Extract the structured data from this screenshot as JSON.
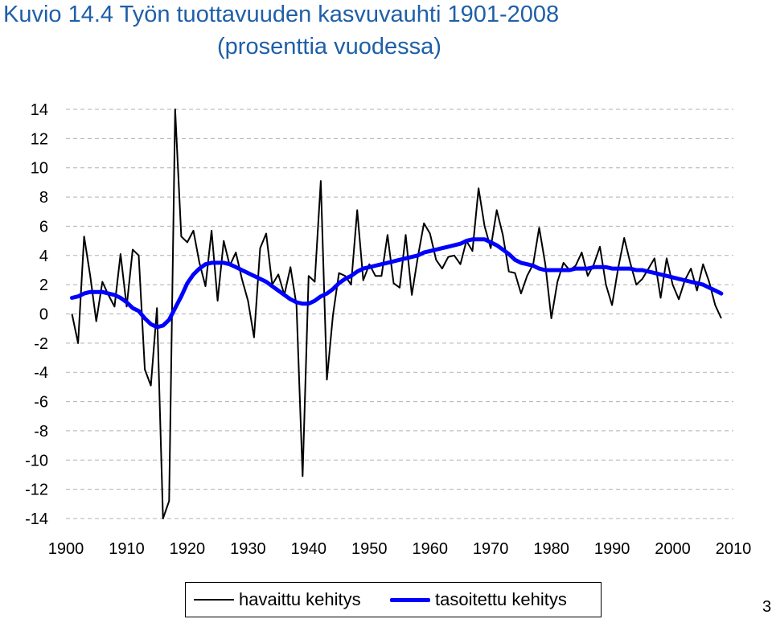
{
  "title_line1": "Kuvio 14.4 Työn tuottavuuden kasvuvauhti 1901-2008",
  "title_line2": "(prosenttia vuodessa)",
  "page_number": "3",
  "colors": {
    "title": "#1f5fa8",
    "observed": "#000000",
    "trend": "#0000ff",
    "grid": "#b0b0b0"
  },
  "chart_data": {
    "type": "line",
    "title": "Kuvio 14.4 Työn tuottavuuden kasvuvauhti 1901-2008 (prosenttia vuodessa)",
    "xlim": [
      1900,
      2010
    ],
    "ylim": [
      -14,
      14
    ],
    "x_ticks": [
      "1900",
      "1910",
      "1920",
      "1930",
      "1940",
      "1950",
      "1960",
      "1970",
      "1980",
      "1990",
      "2000",
      "2010"
    ],
    "y_ticks": [
      "14",
      "12",
      "10",
      "8",
      "6",
      "4",
      "2",
      "0",
      "-2",
      "-4",
      "-6",
      "-8",
      "-10",
      "-12",
      "-14"
    ],
    "grid": "horizontal dashed",
    "legend": "bottom",
    "series": [
      {
        "name": "havaittu kehitys",
        "style": "thin black line",
        "points": [
          [
            1901,
            0.0
          ],
          [
            1902,
            -2.0
          ],
          [
            1903,
            5.3
          ],
          [
            1904,
            2.6
          ],
          [
            1905,
            -0.5
          ],
          [
            1906,
            2.2
          ],
          [
            1907,
            1.3
          ],
          [
            1908,
            0.5
          ],
          [
            1909,
            4.1
          ],
          [
            1910,
            0.5
          ],
          [
            1911,
            4.4
          ],
          [
            1912,
            4.0
          ],
          [
            1913,
            -3.8
          ],
          [
            1914,
            -4.9
          ],
          [
            1915,
            0.4
          ],
          [
            1916,
            -14.0
          ],
          [
            1917,
            -12.8
          ],
          [
            1918,
            14.0
          ],
          [
            1919,
            5.3
          ],
          [
            1920,
            4.9
          ],
          [
            1921,
            5.7
          ],
          [
            1922,
            3.5
          ],
          [
            1923,
            1.9
          ],
          [
            1924,
            5.7
          ],
          [
            1925,
            0.9
          ],
          [
            1926,
            5.0
          ],
          [
            1927,
            3.3
          ],
          [
            1928,
            4.2
          ],
          [
            1929,
            2.4
          ],
          [
            1930,
            0.9
          ],
          [
            1931,
            -1.6
          ],
          [
            1932,
            4.5
          ],
          [
            1933,
            5.5
          ],
          [
            1934,
            2.0
          ],
          [
            1935,
            2.7
          ],
          [
            1936,
            1.3
          ],
          [
            1937,
            3.2
          ],
          [
            1938,
            0.6
          ],
          [
            1939,
            -11.1
          ],
          [
            1940,
            2.6
          ],
          [
            1941,
            2.2
          ],
          [
            1942,
            9.1
          ],
          [
            1943,
            -4.5
          ],
          [
            1944,
            -0.1
          ],
          [
            1945,
            2.8
          ],
          [
            1946,
            2.6
          ],
          [
            1947,
            2.0
          ],
          [
            1948,
            7.1
          ],
          [
            1949,
            2.3
          ],
          [
            1950,
            3.4
          ],
          [
            1951,
            2.6
          ],
          [
            1952,
            2.6
          ],
          [
            1953,
            5.4
          ],
          [
            1954,
            2.1
          ],
          [
            1955,
            1.8
          ],
          [
            1956,
            5.4
          ],
          [
            1957,
            1.3
          ],
          [
            1958,
            3.9
          ],
          [
            1959,
            6.2
          ],
          [
            1960,
            5.5
          ],
          [
            1961,
            3.7
          ],
          [
            1962,
            3.1
          ],
          [
            1963,
            3.9
          ],
          [
            1964,
            4.0
          ],
          [
            1965,
            3.4
          ],
          [
            1966,
            5.0
          ],
          [
            1967,
            4.3
          ],
          [
            1968,
            8.6
          ],
          [
            1969,
            6.0
          ],
          [
            1970,
            4.5
          ],
          [
            1971,
            7.1
          ],
          [
            1972,
            5.4
          ],
          [
            1973,
            2.9
          ],
          [
            1974,
            2.8
          ],
          [
            1975,
            1.4
          ],
          [
            1976,
            2.6
          ],
          [
            1977,
            3.4
          ],
          [
            1978,
            5.9
          ],
          [
            1979,
            3.4
          ],
          [
            1980,
            -0.3
          ],
          [
            1981,
            2.2
          ],
          [
            1982,
            3.5
          ],
          [
            1983,
            3.0
          ],
          [
            1984,
            3.3
          ],
          [
            1985,
            4.2
          ],
          [
            1986,
            2.6
          ],
          [
            1987,
            3.4
          ],
          [
            1988,
            4.6
          ],
          [
            1989,
            2.0
          ],
          [
            1990,
            0.6
          ],
          [
            1991,
            3.1
          ],
          [
            1992,
            5.2
          ],
          [
            1993,
            3.5
          ],
          [
            1994,
            2.0
          ],
          [
            1995,
            2.4
          ],
          [
            1996,
            3.1
          ],
          [
            1997,
            3.8
          ],
          [
            1998,
            1.1
          ],
          [
            1999,
            3.8
          ],
          [
            2000,
            2.0
          ],
          [
            2001,
            1.0
          ],
          [
            2002,
            2.3
          ],
          [
            2003,
            3.1
          ],
          [
            2004,
            1.6
          ],
          [
            2005,
            3.4
          ],
          [
            2006,
            2.2
          ],
          [
            2007,
            0.6
          ],
          [
            2008,
            -0.3
          ]
        ]
      },
      {
        "name": "tasoitettu kehitys",
        "style": "thick blue line",
        "points": [
          [
            1901,
            1.1
          ],
          [
            1902,
            1.2
          ],
          [
            1903,
            1.4
          ],
          [
            1904,
            1.5
          ],
          [
            1905,
            1.5
          ],
          [
            1906,
            1.5
          ],
          [
            1907,
            1.4
          ],
          [
            1908,
            1.3
          ],
          [
            1909,
            1.1
          ],
          [
            1910,
            0.8
          ],
          [
            1911,
            0.4
          ],
          [
            1912,
            0.2
          ],
          [
            1913,
            -0.3
          ],
          [
            1914,
            -0.7
          ],
          [
            1915,
            -0.9
          ],
          [
            1916,
            -0.8
          ],
          [
            1917,
            -0.4
          ],
          [
            1918,
            0.4
          ],
          [
            1919,
            1.2
          ],
          [
            1920,
            2.1
          ],
          [
            1921,
            2.7
          ],
          [
            1922,
            3.1
          ],
          [
            1923,
            3.4
          ],
          [
            1924,
            3.5
          ],
          [
            1925,
            3.5
          ],
          [
            1926,
            3.5
          ],
          [
            1927,
            3.4
          ],
          [
            1928,
            3.2
          ],
          [
            1929,
            3.0
          ],
          [
            1930,
            2.8
          ],
          [
            1931,
            2.6
          ],
          [
            1932,
            2.4
          ],
          [
            1933,
            2.2
          ],
          [
            1934,
            1.9
          ],
          [
            1935,
            1.6
          ],
          [
            1936,
            1.3
          ],
          [
            1937,
            1.0
          ],
          [
            1938,
            0.8
          ],
          [
            1939,
            0.7
          ],
          [
            1940,
            0.7
          ],
          [
            1941,
            0.9
          ],
          [
            1942,
            1.2
          ],
          [
            1943,
            1.4
          ],
          [
            1944,
            1.7
          ],
          [
            1945,
            2.1
          ],
          [
            1946,
            2.4
          ],
          [
            1947,
            2.6
          ],
          [
            1948,
            2.9
          ],
          [
            1949,
            3.1
          ],
          [
            1950,
            3.2
          ],
          [
            1951,
            3.3
          ],
          [
            1952,
            3.4
          ],
          [
            1953,
            3.5
          ],
          [
            1954,
            3.6
          ],
          [
            1955,
            3.7
          ],
          [
            1956,
            3.8
          ],
          [
            1957,
            3.9
          ],
          [
            1958,
            4.0
          ],
          [
            1959,
            4.2
          ],
          [
            1960,
            4.3
          ],
          [
            1961,
            4.4
          ],
          [
            1962,
            4.5
          ],
          [
            1963,
            4.6
          ],
          [
            1964,
            4.7
          ],
          [
            1965,
            4.8
          ],
          [
            1966,
            5.0
          ],
          [
            1967,
            5.1
          ],
          [
            1968,
            5.1
          ],
          [
            1969,
            5.1
          ],
          [
            1970,
            4.9
          ],
          [
            1971,
            4.7
          ],
          [
            1972,
            4.4
          ],
          [
            1973,
            4.1
          ],
          [
            1974,
            3.7
          ],
          [
            1975,
            3.5
          ],
          [
            1976,
            3.4
          ],
          [
            1977,
            3.3
          ],
          [
            1978,
            3.1
          ],
          [
            1979,
            3.0
          ],
          [
            1980,
            3.0
          ],
          [
            1981,
            3.0
          ],
          [
            1982,
            3.0
          ],
          [
            1983,
            3.0
          ],
          [
            1984,
            3.1
          ],
          [
            1985,
            3.1
          ],
          [
            1986,
            3.1
          ],
          [
            1987,
            3.2
          ],
          [
            1988,
            3.2
          ],
          [
            1989,
            3.2
          ],
          [
            1990,
            3.1
          ],
          [
            1991,
            3.1
          ],
          [
            1992,
            3.1
          ],
          [
            1993,
            3.1
          ],
          [
            1994,
            3.0
          ],
          [
            1995,
            3.0
          ],
          [
            1996,
            2.9
          ],
          [
            1997,
            2.8
          ],
          [
            1998,
            2.7
          ],
          [
            1999,
            2.6
          ],
          [
            2000,
            2.5
          ],
          [
            2001,
            2.4
          ],
          [
            2002,
            2.3
          ],
          [
            2003,
            2.2
          ],
          [
            2004,
            2.1
          ],
          [
            2005,
            2.0
          ],
          [
            2006,
            1.8
          ],
          [
            2007,
            1.6
          ],
          [
            2008,
            1.4
          ]
        ]
      }
    ]
  }
}
